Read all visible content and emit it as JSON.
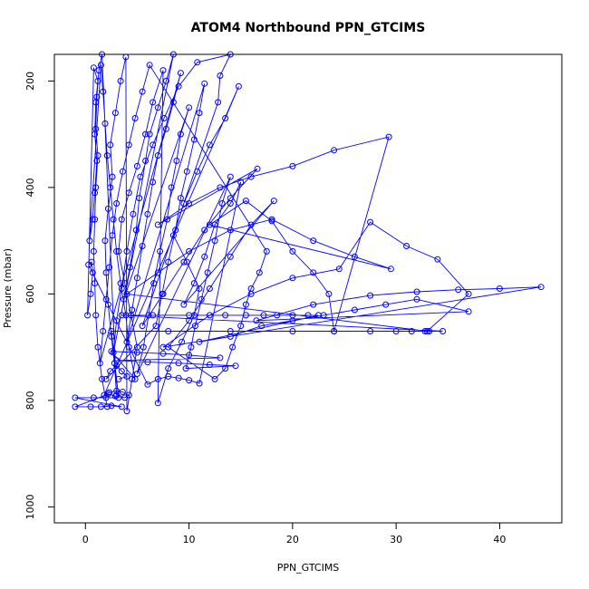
{
  "chart_data": {
    "type": "scatter",
    "title": "ATOM4 Northbound PPN_GTCIMS",
    "xlabel": "PPN_GTCIMS",
    "ylabel": "Pressure (mbar)",
    "xlim": [
      -3,
      46
    ],
    "ylim": [
      1030,
      150
    ],
    "y_reversed": true,
    "x_ticks": [
      0,
      10,
      20,
      30,
      40
    ],
    "y_ticks": [
      200,
      400,
      600,
      800,
      1000
    ],
    "x_tick_labels": [
      "0",
      "10",
      "20",
      "30",
      "40"
    ],
    "y_tick_labels": [
      "200",
      "400",
      "600",
      "800",
      "1000"
    ],
    "grid": false,
    "legend": "none",
    "series": [
      {
        "color": "#0000ff",
        "marker": "open-circle",
        "connected": true,
        "points": [
          [
            2.1,
            812
          ],
          [
            1.6,
            760
          ],
          [
            1.2,
            700
          ],
          [
            1.0,
            640
          ],
          [
            0.9,
            580
          ],
          [
            0.8,
            520
          ],
          [
            0.9,
            460
          ],
          [
            1.0,
            400
          ],
          [
            1.2,
            340
          ],
          [
            1.0,
            290
          ],
          [
            1.1,
            230
          ],
          [
            1.3,
            180
          ],
          [
            1.6,
            150
          ],
          [
            3.0,
            790
          ],
          [
            2.8,
            730
          ],
          [
            2.5,
            680
          ],
          [
            2.2,
            620
          ],
          [
            2.0,
            560
          ],
          [
            1.9,
            500
          ],
          [
            2.2,
            440
          ],
          [
            2.6,
            380
          ],
          [
            2.4,
            320
          ],
          [
            2.9,
            260
          ],
          [
            3.4,
            200
          ],
          [
            3.9,
            155
          ],
          [
            4.0,
            820
          ],
          [
            4.5,
            760
          ],
          [
            5.0,
            700
          ],
          [
            4.4,
            640
          ],
          [
            3.8,
            580
          ],
          [
            3.2,
            520
          ],
          [
            3.5,
            460
          ],
          [
            4.2,
            410
          ],
          [
            5.0,
            360
          ],
          [
            5.8,
            300
          ],
          [
            6.5,
            240
          ],
          [
            7.5,
            180
          ],
          [
            7.0,
            805
          ],
          [
            8.0,
            740
          ],
          [
            9.3,
            690
          ],
          [
            10.5,
            640
          ],
          [
            11.0,
            590
          ],
          [
            9.8,
            540
          ],
          [
            8.5,
            490
          ],
          [
            9.5,
            430
          ],
          [
            10.8,
            370
          ],
          [
            12.0,
            320
          ],
          [
            13.5,
            270
          ],
          [
            14.8,
            210
          ],
          [
            1.8,
            790
          ],
          [
            2.3,
            785
          ],
          [
            3.0,
            782
          ],
          [
            3.6,
            784
          ],
          [
            4.2,
            790
          ],
          [
            3.8,
            795
          ],
          [
            2.9,
            792
          ],
          [
            2.2,
            788
          ],
          [
            -1.0,
            812
          ],
          [
            0.5,
            812
          ],
          [
            1.5,
            812
          ],
          [
            2.5,
            810
          ],
          [
            3.5,
            812
          ],
          [
            -1.0,
            795
          ],
          [
            0.8,
            795
          ],
          [
            2.0,
            795
          ],
          [
            3.2,
            795
          ],
          [
            2.5,
            670
          ],
          [
            8.0,
            670
          ],
          [
            14.0,
            670
          ],
          [
            20.0,
            670
          ],
          [
            24.0,
            670
          ],
          [
            27.5,
            670
          ],
          [
            30.0,
            670
          ],
          [
            31.5,
            670
          ],
          [
            32.8,
            670
          ],
          [
            33.2,
            670
          ],
          [
            34.5,
            670
          ],
          [
            3.5,
            640
          ],
          [
            6.5,
            640
          ],
          [
            10.0,
            640
          ],
          [
            13.5,
            640
          ],
          [
            15.5,
            640
          ],
          [
            17.2,
            640
          ],
          [
            18.5,
            640
          ],
          [
            20.0,
            640
          ],
          [
            21.5,
            640
          ],
          [
            22.5,
            640
          ],
          [
            11.0,
            690
          ],
          [
            14.0,
            680
          ],
          [
            17.0,
            660
          ],
          [
            20.0,
            650
          ],
          [
            23.0,
            640
          ],
          [
            26.0,
            630
          ],
          [
            29.0,
            620
          ],
          [
            32.0,
            610
          ],
          [
            37.0,
            633
          ],
          [
            16.5,
            650
          ],
          [
            22.0,
            620
          ],
          [
            27.5,
            603
          ],
          [
            32.0,
            596
          ],
          [
            36.0,
            592
          ],
          [
            40.0,
            590
          ],
          [
            44.0,
            587
          ],
          [
            7.5,
            700
          ],
          [
            12.0,
            640
          ],
          [
            16.0,
            600
          ],
          [
            20.0,
            570
          ],
          [
            24.5,
            553
          ],
          [
            27.5,
            465
          ],
          [
            31.0,
            510
          ],
          [
            34.0,
            535
          ],
          [
            37.0,
            600
          ],
          [
            33.0,
            670
          ],
          [
            4.0,
            600
          ],
          [
            7.0,
            560
          ],
          [
            10.0,
            520
          ],
          [
            14.0,
            480
          ],
          [
            18.0,
            460
          ],
          [
            22.0,
            500
          ],
          [
            26.0,
            530
          ],
          [
            29.5,
            553
          ],
          [
            12.0,
            470
          ],
          [
            15.5,
            425
          ],
          [
            18.0,
            463
          ],
          [
            20.0,
            520
          ],
          [
            22.0,
            560
          ],
          [
            23.5,
            600
          ],
          [
            24.0,
            670
          ],
          [
            29.3,
            305
          ],
          [
            24.0,
            330
          ],
          [
            20.0,
            360
          ],
          [
            16.0,
            380
          ],
          [
            13.0,
            400
          ],
          [
            10.0,
            430
          ],
          [
            7.0,
            470
          ],
          [
            16.6,
            365
          ],
          [
            14.0,
            420
          ],
          [
            11.5,
            480
          ],
          [
            9.5,
            540
          ],
          [
            7.5,
            600
          ],
          [
            5.5,
            660
          ],
          [
            12.8,
            240
          ],
          [
            13.0,
            190
          ],
          [
            14.0,
            150
          ],
          [
            10.8,
            165
          ],
          [
            9.0,
            210
          ],
          [
            7.6,
            270
          ],
          [
            6.5,
            320
          ],
          [
            5.3,
            380
          ],
          [
            4.6,
            450
          ],
          [
            4.0,
            520
          ],
          [
            3.5,
            590
          ],
          [
            3.0,
            650
          ],
          [
            2.7,
            710
          ],
          [
            8.5,
            150
          ],
          [
            7.8,
            200
          ],
          [
            7.0,
            250
          ],
          [
            6.2,
            300
          ],
          [
            5.8,
            350
          ],
          [
            5.2,
            420
          ],
          [
            4.9,
            480
          ],
          [
            4.3,
            550
          ],
          [
            3.7,
            610
          ],
          [
            10.0,
            250
          ],
          [
            9.2,
            300
          ],
          [
            8.8,
            350
          ],
          [
            8.3,
            400
          ],
          [
            7.9,
            460
          ],
          [
            7.2,
            520
          ],
          [
            6.6,
            580
          ],
          [
            6.1,
            640
          ],
          [
            5.6,
            700
          ],
          [
            5.0,
            750
          ],
          [
            14.0,
            380
          ],
          [
            13.2,
            430
          ],
          [
            12.5,
            500
          ],
          [
            11.8,
            560
          ],
          [
            11.2,
            610
          ],
          [
            10.6,
            660
          ],
          [
            10.2,
            700
          ],
          [
            9.7,
            740
          ],
          [
            14.5,
            735
          ],
          [
            12.0,
            733
          ],
          [
            9.0,
            730
          ],
          [
            6.0,
            728
          ],
          [
            3.0,
            725
          ],
          [
            13.0,
            720
          ],
          [
            10.0,
            715
          ],
          [
            7.5,
            712
          ],
          [
            5.0,
            710
          ],
          [
            2.5,
            708
          ],
          [
            4.8,
            760
          ],
          [
            4.2,
            700
          ],
          [
            3.9,
            640
          ],
          [
            3.4,
            580
          ],
          [
            3.0,
            520
          ],
          [
            2.7,
            460
          ],
          [
            2.4,
            400
          ],
          [
            2.1,
            340
          ],
          [
            1.9,
            280
          ],
          [
            1.7,
            220
          ],
          [
            1.5,
            170
          ],
          [
            0.4,
            500
          ],
          [
            0.7,
            460
          ],
          [
            0.9,
            410
          ],
          [
            1.1,
            350
          ],
          [
            0.9,
            300
          ],
          [
            1.0,
            240
          ],
          [
            1.2,
            200
          ],
          [
            0.8,
            175
          ],
          [
            0.2,
            640
          ],
          [
            0.5,
            600
          ],
          [
            0.7,
            560
          ],
          [
            0.6,
            540
          ],
          [
            0.3,
            545
          ],
          [
            6.0,
            770
          ],
          [
            7.0,
            760
          ],
          [
            8.0,
            755
          ],
          [
            9.0,
            758
          ],
          [
            10.0,
            762
          ],
          [
            11.0,
            768
          ],
          [
            15.0,
            390
          ],
          [
            14.0,
            430
          ],
          [
            12.5,
            470
          ],
          [
            11.5,
            530
          ],
          [
            10.5,
            580
          ],
          [
            9.5,
            620
          ],
          [
            18.2,
            425
          ],
          [
            16.0,
            470
          ],
          [
            14.0,
            530
          ],
          [
            12.0,
            590
          ],
          [
            10.0,
            650
          ],
          [
            8.0,
            700
          ],
          [
            12.5,
            760
          ],
          [
            13.5,
            740
          ],
          [
            14.2,
            700
          ],
          [
            15.0,
            660
          ],
          [
            15.5,
            620
          ],
          [
            16.0,
            590
          ],
          [
            16.8,
            560
          ],
          [
            17.5,
            520
          ],
          [
            6.2,
            170
          ],
          [
            5.5,
            220
          ],
          [
            4.8,
            270
          ],
          [
            4.2,
            320
          ],
          [
            3.6,
            370
          ],
          [
            3.0,
            430
          ],
          [
            2.6,
            490
          ],
          [
            2.3,
            550
          ],
          [
            2.0,
            610
          ],
          [
            1.7,
            670
          ],
          [
            1.4,
            730
          ],
          [
            9.2,
            185
          ],
          [
            8.5,
            240
          ],
          [
            7.8,
            290
          ],
          [
            7.0,
            340
          ],
          [
            6.5,
            390
          ],
          [
            6.0,
            450
          ],
          [
            5.5,
            510
          ],
          [
            5.0,
            570
          ],
          [
            4.5,
            630
          ],
          [
            4.0,
            690
          ],
          [
            11.5,
            205
          ],
          [
            11.0,
            260
          ],
          [
            10.5,
            310
          ],
          [
            9.8,
            370
          ],
          [
            9.2,
            420
          ],
          [
            8.7,
            480
          ],
          [
            8.0,
            540
          ],
          [
            7.4,
            600
          ],
          [
            6.8,
            660
          ],
          [
            2.0,
            760
          ],
          [
            2.4,
            745
          ],
          [
            3.0,
            735
          ],
          [
            3.5,
            745
          ],
          [
            4.0,
            755
          ],
          [
            3.2,
            760
          ]
        ]
      }
    ]
  }
}
